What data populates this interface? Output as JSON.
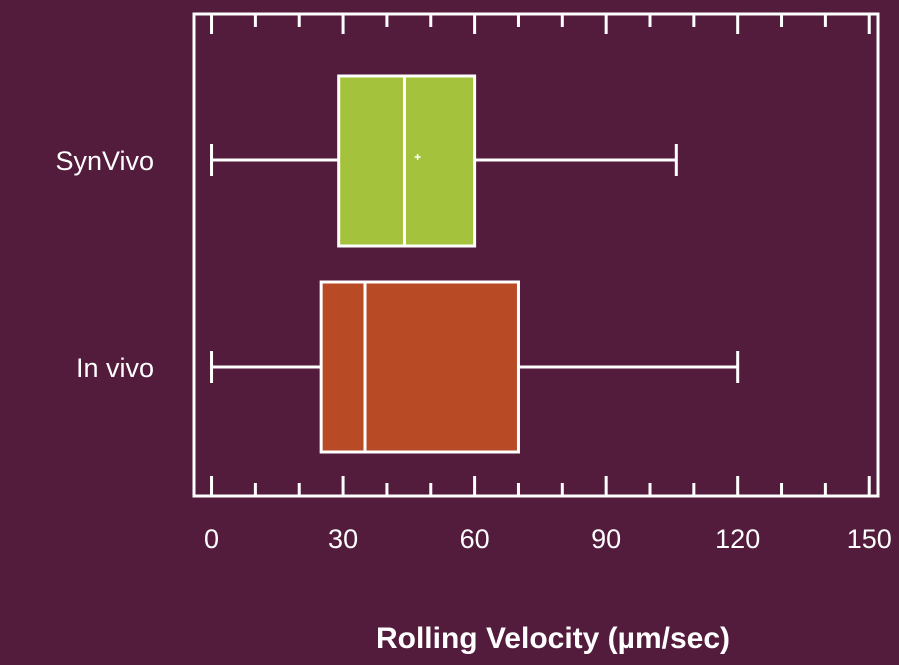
{
  "chart_data": {
    "type": "box",
    "title": "",
    "xlabel": "Rolling Velocity (µm/sec)",
    "ylabel": "",
    "xlim": [
      -4,
      152
    ],
    "xticks": [
      0,
      30,
      60,
      90,
      120,
      150
    ],
    "minor_tick_step": 10,
    "grid": false,
    "categories": [
      "SynVivo",
      "In vivo"
    ],
    "series": [
      {
        "category": "SynVivo",
        "min": 0,
        "q1": 29,
        "median": 44,
        "mean": 47,
        "q3": 60,
        "max": 106,
        "color": "#a4c23b"
      },
      {
        "category": "In vivo",
        "min": 0,
        "q1": 25,
        "median": 35,
        "q3": 70,
        "max": 120,
        "color": "#b84a26"
      }
    ]
  },
  "colors": {
    "background": "#531b3c",
    "axis": "#ffffff",
    "text": "#ffffff"
  }
}
